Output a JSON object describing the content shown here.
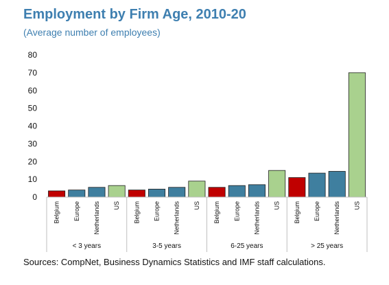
{
  "title": "Employment by Firm Age, 2010-20",
  "subtitle": "(Average number of employees)",
  "source": "Sources: CompNet, Business Dynamics Statistics and IMF staff calculations.",
  "chart_data": {
    "type": "bar",
    "ylim": [
      0,
      80
    ],
    "yticks": [
      "0",
      "10",
      "20",
      "30",
      "40",
      "50",
      "60",
      "70",
      "80"
    ],
    "grid": false,
    "groups": [
      {
        "label": "< 3 years",
        "categories": [
          "Belgium",
          "Europe",
          "Netherlands",
          "US"
        ],
        "values": [
          3.5,
          4,
          5.5,
          6.5
        ]
      },
      {
        "label": "3-5 years",
        "categories": [
          "Belgium",
          "Europe",
          "Netherlands",
          "US"
        ],
        "values": [
          4,
          4.5,
          5.5,
          9
        ]
      },
      {
        "label": "6-25 years",
        "categories": [
          "Belgium",
          "Europe",
          "Netherlands",
          "US"
        ],
        "values": [
          5.5,
          6.5,
          7,
          15
        ]
      },
      {
        "label": "> 25 years",
        "categories": [
          "Belgium",
          "Europe",
          "Netherlands",
          "US"
        ],
        "values": [
          11,
          13.5,
          14.5,
          70
        ]
      }
    ],
    "colors": {
      "Belgium": "#c00000",
      "Europe": "#3f7f9f",
      "Netherlands": "#3f7f9f",
      "US": "#a9d18e"
    }
  }
}
